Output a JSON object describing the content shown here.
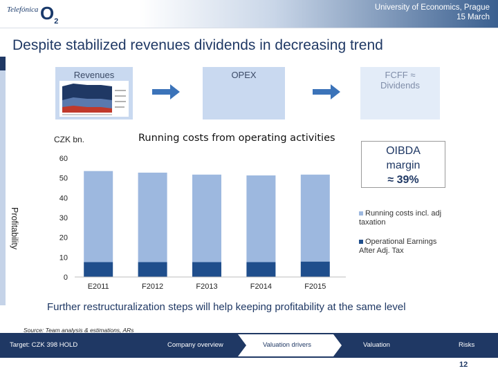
{
  "header": {
    "logo_brand": "Telefónica",
    "logo_o2": "O",
    "logo_o2_sub": "2",
    "event_line1": "University of Economics, Prague",
    "event_line2": "15 March"
  },
  "title": "Despite stabilized revenues dividends in decreasing trend",
  "flow": {
    "revenues_label": "Revenues",
    "opex_label": "OPEX",
    "fcff_label": "FCFF ≈ Dividends"
  },
  "chart_data": {
    "type": "bar",
    "stacked": true,
    "title": "Running costs from operating activities",
    "unit_label": "CZK bn.",
    "categories": [
      "E2011",
      "F2012",
      "F2013",
      "F2014",
      "F2015"
    ],
    "series": [
      {
        "name": "Operational Earnings After Adj. Tax",
        "color": "#1f4e8c",
        "values": [
          7.5,
          7.5,
          7.5,
          7.5,
          7.8
        ]
      },
      {
        "name": "Running costs incl. adj taxation",
        "color": "#9db8df",
        "values": [
          46,
          45.2,
          44.2,
          43.8,
          43.9
        ]
      }
    ],
    "ylim": [
      0,
      60
    ],
    "yticks": [
      0,
      10,
      20,
      30,
      40,
      50,
      60
    ]
  },
  "oibda": {
    "line1": "OIBDA",
    "line2": "margin",
    "line3": "≈ 39%"
  },
  "side_label": "Profitability",
  "note": "Further restructuralization steps will help keeping profitability at the same level",
  "source": "Source: Team analysis & estimations, ARs",
  "footer": {
    "target": "Target: CZK 398 HOLD",
    "nav": [
      "Company overview",
      "Valuation drivers",
      "Valuation",
      "Risks"
    ]
  },
  "page_number": "12"
}
